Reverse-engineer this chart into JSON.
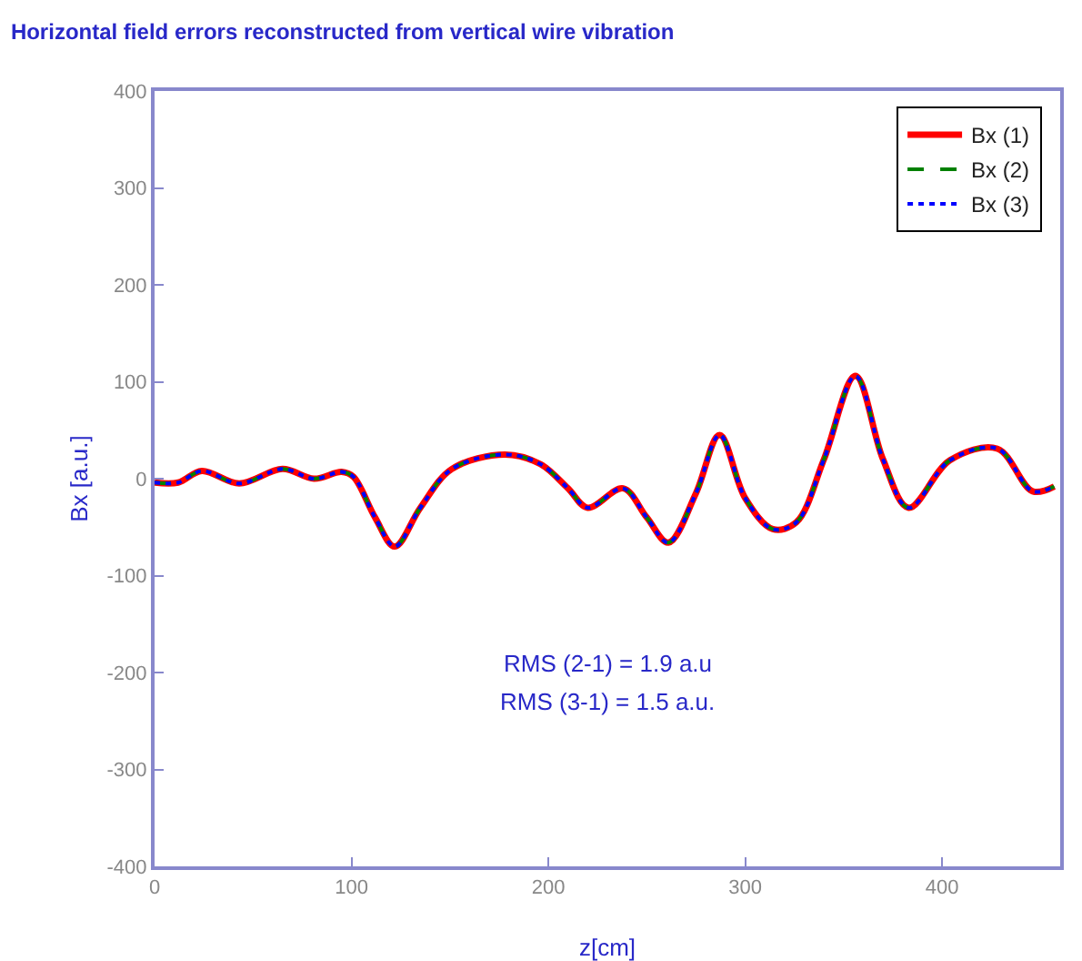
{
  "chart_data": {
    "type": "line",
    "title": "Horizontal field errors reconstructed from vertical wire vibration",
    "xlabel": "z[cm]",
    "ylabel": "Bx [a.u.]",
    "x": [
      0,
      12,
      24,
      43,
      65,
      81,
      95,
      101,
      112,
      122,
      135,
      151,
      178,
      196,
      210,
      220,
      238,
      250,
      261,
      275,
      287,
      300,
      314,
      326,
      340,
      356,
      370,
      383,
      404,
      428,
      446,
      457
    ],
    "series": [
      {
        "name": "Bx (1)",
        "color": "#ff0000",
        "line_style": "solid",
        "values": [
          -4,
          -4,
          8,
          -5,
          10,
          0,
          7,
          2,
          -40,
          -70,
          -30,
          10,
          25,
          15,
          -10,
          -30,
          -10,
          -40,
          -66,
          -15,
          45,
          -20,
          -52,
          -45,
          20,
          106,
          20,
          -30,
          19,
          31,
          -13,
          -8
        ]
      },
      {
        "name": "Bx (2)",
        "color": "#008000",
        "line_style": "dashed",
        "values": [
          -4,
          -4,
          8,
          -5,
          10,
          0,
          7,
          2,
          -40,
          -70,
          -30,
          10,
          25,
          15,
          -10,
          -30,
          -10,
          -40,
          -66,
          -15,
          45,
          -20,
          -52,
          -45,
          20,
          106,
          20,
          -30,
          19,
          31,
          -13,
          -8
        ]
      },
      {
        "name": "Bx (3)",
        "color": "#0000ff",
        "line_style": "dotted",
        "values": [
          -4,
          -4,
          8,
          -5,
          10,
          0,
          7,
          2,
          -40,
          -70,
          -30,
          10,
          25,
          15,
          -10,
          -30,
          -10,
          -40,
          -66,
          -15,
          45,
          -20,
          -52,
          -45,
          20,
          106,
          20,
          -30,
          19,
          31,
          -13,
          -8
        ]
      }
    ],
    "xlim": [
      0,
      460
    ],
    "xticks": [
      0,
      100,
      200,
      300,
      400
    ],
    "ylim": [
      -400,
      400
    ],
    "yticks": [
      -400,
      -300,
      -200,
      -100,
      0,
      100,
      200,
      300,
      400
    ],
    "grid": false,
    "legend": "top right",
    "marker": "none",
    "annotations": [
      "RMS (2-1) = 1.9 a.u",
      "RMS (3-1) = 1.5 a.u."
    ]
  }
}
